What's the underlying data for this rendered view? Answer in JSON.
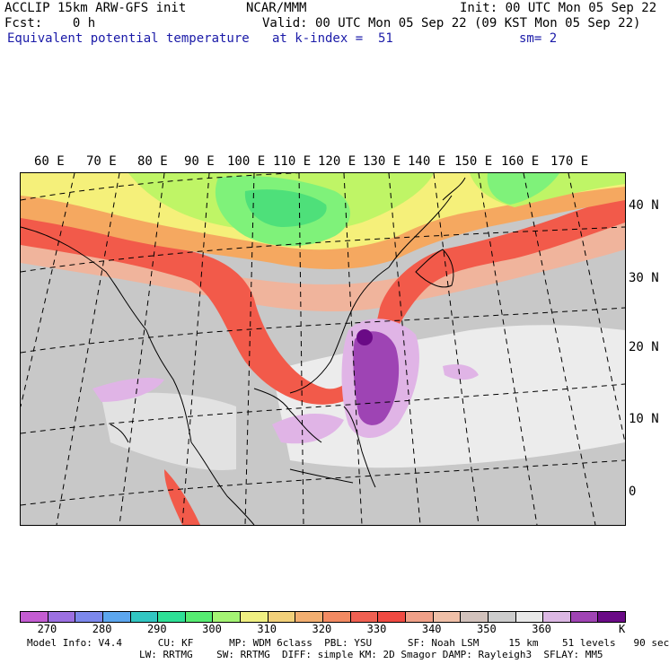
{
  "header": {
    "line1_left": "ACCLIP 15km ARW-GFS init",
    "line1_mid": "NCAR/MMM",
    "line1_right": "Init: 00 UTC Mon 05 Sep 22",
    "line2_left": "Fcst:    0 h",
    "line2_right": "Valid: 00 UTC Mon 05 Sep 22 (09 KST Mon 05 Sep 22)",
    "line3_left": "Equivalent potential temperature",
    "line3_mid": "at k-index =  51",
    "line3_right": "sm= 2"
  },
  "map": {
    "lon_labels": [
      "60 E",
      "70 E",
      "80 E",
      "90 E",
      "100 E",
      "110 E",
      "120 E",
      "130 E",
      "140 E",
      "150 E",
      "160 E",
      "170 E"
    ],
    "lat_labels": [
      "40 N",
      "30 N",
      "20 N",
      "10 N",
      "0"
    ],
    "colors": {
      "cold": "#4ee07a",
      "green2": "#7ff27a",
      "lime": "#bff566",
      "yellow": "#f5f07a",
      "orange": "#f5a860",
      "red": "#f25a4a",
      "salmon": "#f0b49c",
      "gray": "#c8c8c8",
      "light": "#ececec",
      "lilac": "#e0b4e6",
      "purple": "#9e44b4",
      "dark": "#6a0a86"
    }
  },
  "colorbar": {
    "colors": [
      "#c45cd2",
      "#9c70e2",
      "#7c88ec",
      "#5ca6ee",
      "#32c6c2",
      "#2ee096",
      "#56ec72",
      "#a4f474",
      "#f0f082",
      "#f2d07a",
      "#f2ae70",
      "#f28a62",
      "#f06052",
      "#f04a42",
      "#f0a088",
      "#f0c0a8",
      "#d2c2bc",
      "#cccccc",
      "#e8e8e8",
      "#dcb8e4",
      "#a044b4",
      "#6a0a86"
    ],
    "labels": [
      "270",
      "280",
      "290",
      "300",
      "310",
      "320",
      "330",
      "340",
      "350",
      "360"
    ],
    "unit": "K"
  },
  "footer": {
    "line1": "Model Info: V4.4      CU: KF      MP: WDM 6class  PBL: YSU      SF: Noah LSM     15 km    51 levels   90 sec",
    "line2": "LW: RRTMG    SW: RRTMG  DIFF: simple KM: 2D Smagor DAMP: Rayleigh3  SFLAY: MM5"
  }
}
